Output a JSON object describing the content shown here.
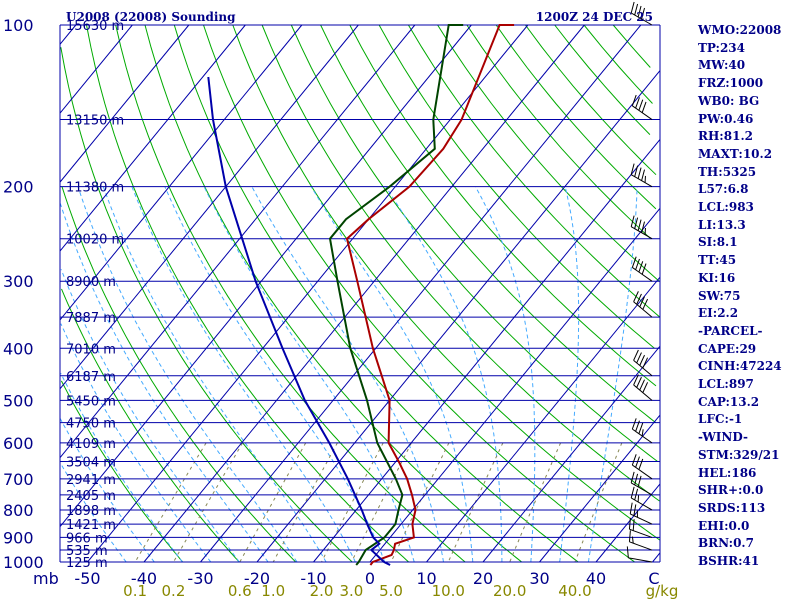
{
  "header": {
    "station": "U2008 (22008) Sounding",
    "valid_time": "1200Z 24 DEC 25"
  },
  "indices": [
    "WMO:22008",
    "TP:234",
    "MW:40",
    "FRZ:1000",
    "WB0: BG",
    "PW:0.46",
    "RH:81.2",
    "MAXT:10.2",
    "TH:5325",
    "L57:6.8",
    "LCL:983",
    "LI:13.3",
    "SI:8.1",
    "TT:45",
    "KI:16",
    "SW:75",
    "EI:2.2",
    "-PARCEL-",
    "CAPE:29",
    "CINH:47224",
    "LCL:897",
    "CAP:13.2",
    "LFC:-1",
    "-WIND-",
    "STM:329/21",
    "HEL:186",
    "SHR+:0.0",
    "SRDS:113",
    "EHI:0.0",
    "BRN:0.7",
    "BSHR:41"
  ],
  "colors": {
    "isobar": "#0000aa",
    "isotherm": "#0000aa",
    "dry_adiabat": "#00aa00",
    "moist_adiabat": "#44aaff",
    "mixing_ratio": "#888855",
    "temperature": "#aa0000",
    "dewpoint": "#004400",
    "parcel": "#0000aa",
    "wind_barb": "#000000",
    "axis_text": "#000088",
    "mixing_text": "#888800"
  },
  "chart_data": {
    "type": "line",
    "title": "U2008 (22008) Sounding",
    "xlabel": "C",
    "ylabel": "mb",
    "mixing_unit": "g/kg",
    "xlim": [
      -50,
      50
    ],
    "ylim": [
      1000,
      100
    ],
    "x_ticks": [
      -50,
      -40,
      -30,
      -20,
      -10,
      0,
      10,
      20,
      30,
      40
    ],
    "x_tick_labels": [
      "-50",
      "-40",
      "-30",
      "-20",
      "-10",
      "0",
      "10",
      "20",
      "30",
      "40"
    ],
    "pressure_levels": [
      100,
      200,
      300,
      400,
      500,
      600,
      700,
      800,
      900,
      1000
    ],
    "pressure_labels": [
      "100",
      "200",
      "300",
      "400",
      "500",
      "600",
      "700",
      "800",
      "900",
      "1000"
    ],
    "heights": [
      {
        "p": 100,
        "label": "15630 m"
      },
      {
        "p": 150,
        "label": "13150 m"
      },
      {
        "p": 200,
        "label": "11380 m"
      },
      {
        "p": 250,
        "label": "10020 m"
      },
      {
        "p": 300,
        "label": "8900 m"
      },
      {
        "p": 350,
        "label": "7887 m"
      },
      {
        "p": 400,
        "label": "7010 m"
      },
      {
        "p": 450,
        "label": "6187 m"
      },
      {
        "p": 500,
        "label": "5450 m"
      },
      {
        "p": 550,
        "label": "4750 m"
      },
      {
        "p": 600,
        "label": "4109 m"
      },
      {
        "p": 650,
        "label": "3504 m"
      },
      {
        "p": 700,
        "label": "2941 m"
      },
      {
        "p": 750,
        "label": "2405 m"
      },
      {
        "p": 800,
        "label": "1898 m"
      },
      {
        "p": 850,
        "label": "1421 m"
      },
      {
        "p": 900,
        "label": "966 m"
      },
      {
        "p": 950,
        "label": "535 m"
      },
      {
        "p": 1000,
        "label": "125 m"
      }
    ],
    "mixing_ratios": [
      {
        "w": 0.1,
        "label": "0.1"
      },
      {
        "w": 0.2,
        "label": "0.2"
      },
      {
        "w": 0.6,
        "label": "0.6"
      },
      {
        "w": 1.0,
        "label": "1.0"
      },
      {
        "w": 2.0,
        "label": "2.0"
      },
      {
        "w": 3.0,
        "label": "3.0"
      },
      {
        "w": 5.0,
        "label": "5.0"
      },
      {
        "w": 10.0,
        "label": "10.0"
      },
      {
        "w": 20.0,
        "label": "20.0"
      },
      {
        "w": 40.0,
        "label": "40.0"
      }
    ],
    "series": [
      {
        "name": "Temperature",
        "points": [
          {
            "p": 1013,
            "t": 0.5
          },
          {
            "p": 1000,
            "t": 0.5
          },
          {
            "p": 970,
            "t": 2.8
          },
          {
            "p": 950,
            "t": 2.5
          },
          {
            "p": 925,
            "t": 1.8
          },
          {
            "p": 900,
            "t": 4.2
          },
          {
            "p": 850,
            "t": 2.0
          },
          {
            "p": 800,
            "t": 0.5
          },
          {
            "p": 750,
            "t": -2.3
          },
          {
            "p": 700,
            "t": -5.5
          },
          {
            "p": 650,
            "t": -9.5
          },
          {
            "p": 600,
            "t": -14.0
          },
          {
            "p": 500,
            "t": -20.0
          },
          {
            "p": 400,
            "t": -30.5
          },
          {
            "p": 300,
            "t": -43.0
          },
          {
            "p": 250,
            "t": -51.0
          },
          {
            "p": 230,
            "t": -50.0
          },
          {
            "p": 200,
            "t": -47.5
          },
          {
            "p": 170,
            "t": -47.0
          },
          {
            "p": 150,
            "t": -48.0
          },
          {
            "p": 100,
            "t": -55.0
          },
          {
            "p": 90,
            "t": -56.0
          }
        ]
      },
      {
        "name": "Dewpoint",
        "points": [
          {
            "p": 1013,
            "t": -2.0
          },
          {
            "p": 1000,
            "t": -2.0
          },
          {
            "p": 950,
            "t": -2.5
          },
          {
            "p": 900,
            "t": -1.0
          },
          {
            "p": 850,
            "t": -1.0
          },
          {
            "p": 800,
            "t": -2.5
          },
          {
            "p": 750,
            "t": -4.0
          },
          {
            "p": 700,
            "t": -7.5
          },
          {
            "p": 600,
            "t": -16.0
          },
          {
            "p": 500,
            "t": -24.0
          },
          {
            "p": 400,
            "t": -34.5
          },
          {
            "p": 300,
            "t": -46.5
          },
          {
            "p": 250,
            "t": -54.0
          },
          {
            "p": 230,
            "t": -54.0
          },
          {
            "p": 200,
            "t": -51.0
          },
          {
            "p": 170,
            "t": -48.5
          },
          {
            "p": 150,
            "t": -53.0
          },
          {
            "p": 100,
            "t": -64.0
          },
          {
            "p": 90,
            "t": -65.0
          }
        ]
      },
      {
        "name": "Parcel",
        "points": [
          {
            "p": 1013,
            "t": 4.0
          },
          {
            "p": 1000,
            "t": 2.5
          },
          {
            "p": 950,
            "t": -1.5
          },
          {
            "p": 925,
            "t": -1.0
          },
          {
            "p": 900,
            "t": -3.0
          },
          {
            "p": 850,
            "t": -6.0
          },
          {
            "p": 800,
            "t": -9.0
          },
          {
            "p": 700,
            "t": -16.0
          },
          {
            "p": 600,
            "t": -24.5
          },
          {
            "p": 500,
            "t": -35.0
          },
          {
            "p": 400,
            "t": -46.5
          },
          {
            "p": 300,
            "t": -61.0
          },
          {
            "p": 200,
            "t": -80.0
          },
          {
            "p": 150,
            "t": -92.0
          },
          {
            "p": 125,
            "t": -99.0
          }
        ]
      }
    ],
    "winds": [
      {
        "p": 1000,
        "dir": 280,
        "spd": 10
      },
      {
        "p": 950,
        "dir": 290,
        "spd": 15
      },
      {
        "p": 900,
        "dir": 290,
        "spd": 20
      },
      {
        "p": 850,
        "dir": 295,
        "spd": 25
      },
      {
        "p": 800,
        "dir": 300,
        "spd": 25
      },
      {
        "p": 750,
        "dir": 300,
        "spd": 30
      },
      {
        "p": 700,
        "dir": 305,
        "spd": 30
      },
      {
        "p": 600,
        "dir": 305,
        "spd": 35
      },
      {
        "p": 500,
        "dir": 310,
        "spd": 40
      },
      {
        "p": 450,
        "dir": 310,
        "spd": 40
      },
      {
        "p": 350,
        "dir": 310,
        "spd": 40
      },
      {
        "p": 300,
        "dir": 305,
        "spd": 40
      },
      {
        "p": 250,
        "dir": 300,
        "spd": 45
      },
      {
        "p": 200,
        "dir": 300,
        "spd": 45
      },
      {
        "p": 150,
        "dir": 305,
        "spd": 40
      },
      {
        "p": 100,
        "dir": 300,
        "spd": 40
      }
    ]
  }
}
